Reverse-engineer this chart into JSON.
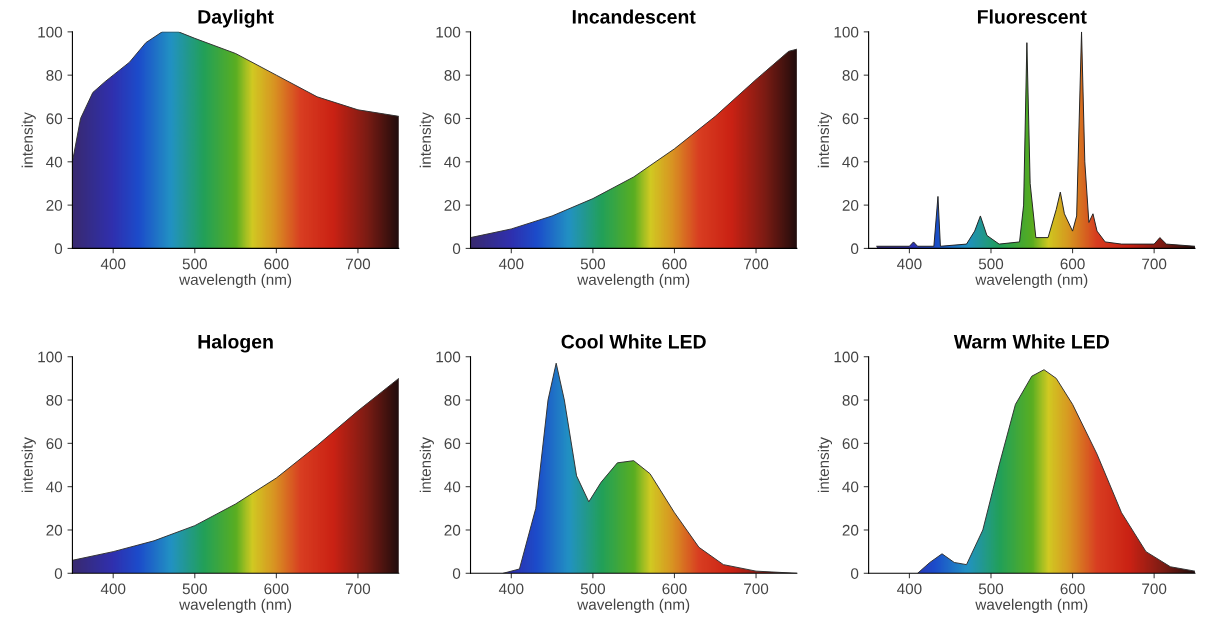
{
  "chart_data": [
    {
      "type": "area",
      "title": "Daylight",
      "xlabel": "wavelength (nm)",
      "ylabel": "intensity",
      "xlim": [
        350,
        750
      ],
      "ylim": [
        0,
        100
      ],
      "xticks": [
        400,
        500,
        600,
        700
      ],
      "yticks": [
        0,
        20,
        40,
        60,
        80,
        100
      ],
      "series": [
        {
          "color": "#333333",
          "x": [
            350,
            360,
            375,
            390,
            400,
            420,
            440,
            460,
            480,
            500,
            550,
            600,
            650,
            700,
            750
          ],
          "values": [
            40,
            60,
            72,
            77,
            80,
            86,
            95,
            100,
            100,
            97,
            90,
            80,
            70,
            64,
            61
          ]
        }
      ]
    },
    {
      "type": "area",
      "title": "Incandescent",
      "xlabel": "wavelength (nm)",
      "ylabel": "intensity",
      "xlim": [
        350,
        750
      ],
      "ylim": [
        0,
        100
      ],
      "xticks": [
        400,
        500,
        600,
        700
      ],
      "yticks": [
        0,
        20,
        40,
        60,
        80,
        100
      ],
      "series": [
        {
          "color": "#333333",
          "x": [
            350,
            400,
            450,
            500,
            550,
            600,
            650,
            700,
            740,
            750
          ],
          "values": [
            5,
            9,
            15,
            23,
            33,
            46,
            61,
            78,
            91,
            92
          ]
        }
      ]
    },
    {
      "type": "area",
      "title": "Fluorescent",
      "xlabel": "wavelength (nm)",
      "ylabel": "intensity",
      "xlim": [
        350,
        750
      ],
      "ylim": [
        0,
        100
      ],
      "xticks": [
        400,
        500,
        600,
        700
      ],
      "yticks": [
        0,
        20,
        40,
        60,
        80,
        100
      ],
      "series": [
        {
          "color": "#222222",
          "x": [
            360,
            400,
            405,
            410,
            430,
            435,
            438,
            470,
            480,
            487,
            495,
            510,
            535,
            540,
            544,
            548,
            555,
            570,
            580,
            585,
            590,
            600,
            605,
            611,
            615,
            620,
            625,
            630,
            640,
            660,
            700,
            707,
            715,
            750
          ],
          "values": [
            1,
            1,
            3,
            1,
            1,
            24,
            1,
            2,
            8,
            15,
            6,
            2,
            3,
            20,
            95,
            30,
            5,
            5,
            18,
            26,
            16,
            8,
            15,
            100,
            40,
            12,
            16,
            8,
            3,
            2,
            2,
            5,
            2,
            1
          ]
        }
      ]
    },
    {
      "type": "area",
      "title": "Halogen",
      "xlabel": "wavelength (nm)",
      "ylabel": "intensity",
      "xlim": [
        350,
        750
      ],
      "ylim": [
        0,
        100
      ],
      "xticks": [
        400,
        500,
        600,
        700
      ],
      "yticks": [
        0,
        20,
        40,
        60,
        80,
        100
      ],
      "series": [
        {
          "color": "#333333",
          "x": [
            350,
            400,
            450,
            500,
            550,
            600,
            650,
            700,
            750
          ],
          "values": [
            6,
            10,
            15,
            22,
            32,
            44,
            59,
            75,
            90
          ]
        }
      ]
    },
    {
      "type": "area",
      "title": "Cool White LED",
      "xlabel": "wavelength (nm)",
      "ylabel": "intensity",
      "xlim": [
        350,
        750
      ],
      "ylim": [
        0,
        100
      ],
      "xticks": [
        400,
        500,
        600,
        700
      ],
      "yticks": [
        0,
        20,
        40,
        60,
        80,
        100
      ],
      "series": [
        {
          "color": "#333333",
          "x": [
            390,
            410,
            430,
            445,
            455,
            465,
            480,
            495,
            510,
            530,
            550,
            570,
            600,
            630,
            660,
            700,
            750
          ],
          "values": [
            0,
            2,
            30,
            80,
            97,
            80,
            45,
            33,
            42,
            51,
            52,
            46,
            28,
            12,
            4,
            1,
            0
          ]
        }
      ]
    },
    {
      "type": "area",
      "title": "Warm White LED",
      "xlabel": "wavelength (nm)",
      "ylabel": "intensity",
      "xlim": [
        350,
        750
      ],
      "ylim": [
        0,
        100
      ],
      "xticks": [
        400,
        500,
        600,
        700
      ],
      "yticks": [
        0,
        20,
        40,
        60,
        80,
        100
      ],
      "series": [
        {
          "color": "#333333",
          "x": [
            410,
            425,
            440,
            455,
            470,
            490,
            510,
            530,
            550,
            565,
            580,
            600,
            630,
            660,
            690,
            720,
            750
          ],
          "values": [
            0,
            5,
            9,
            5,
            4,
            20,
            50,
            78,
            91,
            94,
            90,
            78,
            55,
            28,
            10,
            3,
            1
          ]
        }
      ]
    }
  ]
}
